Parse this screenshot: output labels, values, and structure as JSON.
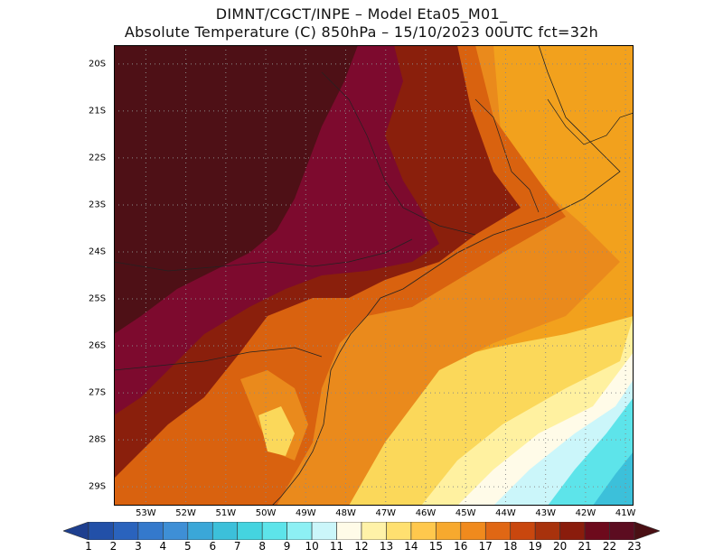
{
  "title": {
    "line1": "DIMNT/CGCT/INPE –  Model Eta05_M01_",
    "line2": "Absolute Temperature (C) 850hPa –  15/10/2023 00UTC fct=32h"
  },
  "map": {
    "lat_labels": [
      "20S",
      "21S",
      "22S",
      "23S",
      "24S",
      "25S",
      "26S",
      "27S",
      "28S",
      "29S"
    ],
    "lon_labels": [
      "53W",
      "52W",
      "51W",
      "50W",
      "49W",
      "48W",
      "47W",
      "46W",
      "45W",
      "44W",
      "43W",
      "42W",
      "41W"
    ],
    "lat_range": [
      -29.4,
      -19.6
    ],
    "lon_range": [
      -53.8,
      -40.8
    ],
    "grid": "dotted"
  },
  "colorbar": {
    "labels": [
      "1",
      "2",
      "3",
      "4",
      "5",
      "6",
      "7",
      "8",
      "9",
      "10",
      "11",
      "12",
      "13",
      "14",
      "15",
      "16",
      "17",
      "18",
      "19",
      "20",
      "21",
      "22",
      "23"
    ],
    "colors": [
      "#1e3f8f",
      "#2250a8",
      "#2a63bd",
      "#3479cc",
      "#3e8fd6",
      "#3aa7d8",
      "#3cc0da",
      "#44d4e0",
      "#5de4ea",
      "#8df0f4",
      "#cbf6fa",
      "#fffbe8",
      "#fff2a8",
      "#ffe070",
      "#ffc84d",
      "#f7a92e",
      "#f08a1d",
      "#e06714",
      "#c9470e",
      "#a8320c",
      "#8a1c0c",
      "#6d0a1c",
      "#5c0c20"
    ],
    "low_color": "#1e3f8f",
    "high_color": "#4a0f14"
  },
  "colors": {
    "very_hot": "#4e1016",
    "hot_magenta": "#7d0a2e",
    "hot_red": "#8a1f0c",
    "orange_red": "#b53a0e",
    "orange": "#d9620f",
    "orange2": "#ea8a1c",
    "amber": "#f2a11d",
    "yellow": "#fbd85a",
    "pale": "#fff1a0",
    "cream": "#fffbe8",
    "icy": "#cbf6fa",
    "cyan": "#5de4ea"
  }
}
